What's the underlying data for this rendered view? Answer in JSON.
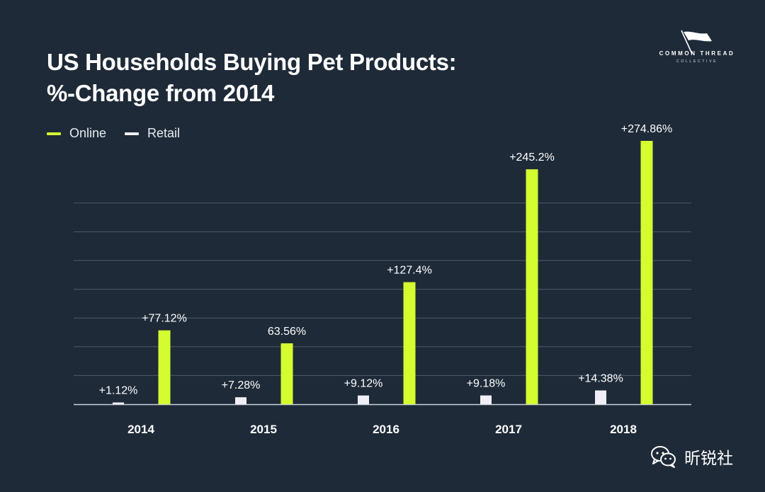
{
  "header": {
    "title_lines": [
      "US Households Buying Pet Products:",
      "%-Change from 2014"
    ]
  },
  "logo": {
    "name": "COMMON THREAD",
    "sub": "COLLECTIVE",
    "icon": "flag-icon"
  },
  "watermark": {
    "text": "昕锐社",
    "icon": "wechat-icon"
  },
  "colors": {
    "background": "#1e2a38",
    "online": "#d4fc2f",
    "retail": "#f1eef8",
    "grid": "#4d5a69",
    "axis": "#c9d1da"
  },
  "chart_data": {
    "type": "bar",
    "categories": [
      "2014",
      "2015",
      "2016",
      "2017",
      "2018"
    ],
    "series": [
      {
        "name": "Retail",
        "values": [
          1.12,
          7.28,
          9.12,
          9.18,
          14.38
        ],
        "labels": [
          "+1.12%",
          "+7.28%",
          "+9.12%",
          "+9.18%",
          "+14.38%"
        ]
      },
      {
        "name": "Online",
        "values": [
          77.12,
          63.56,
          127.4,
          245.2,
          274.86
        ],
        "labels": [
          "+77.12%",
          "63.56%",
          "+127.4%",
          "+245.2%",
          "+274.86%"
        ]
      }
    ],
    "title": "US Households Buying Pet Products: %-Change from 2014",
    "xlabel": "",
    "ylabel": "",
    "ylim": [
      0,
      285
    ],
    "grid": true,
    "legend_position": "top-left"
  }
}
